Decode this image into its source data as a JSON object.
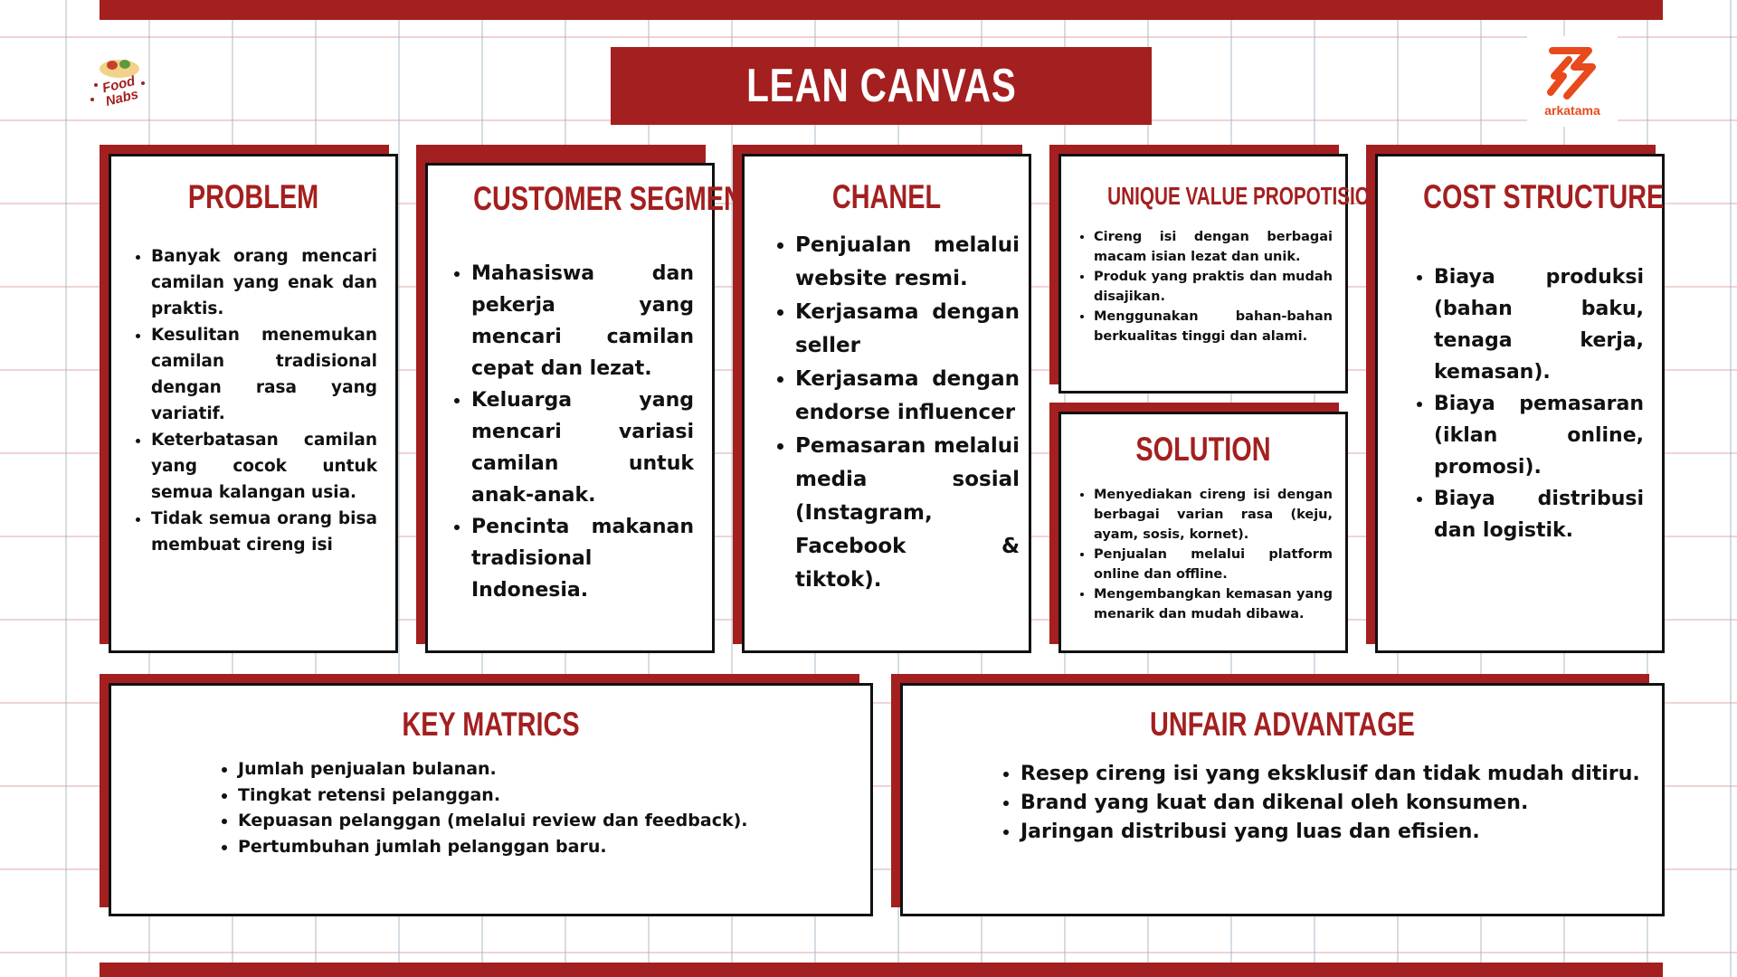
{
  "title": "LEAN CANVAS",
  "logos": {
    "left_text": "Food Nabs",
    "right_text": "arkatama"
  },
  "colors": {
    "accent": "#a41f1f",
    "border": "#111111",
    "logo_orange": "#e84a1c"
  },
  "problem": {
    "title": "PROBLEM",
    "items": [
      "Banyak orang mencari camilan yang enak dan praktis.",
      "Kesulitan menemukan camilan tradisional dengan rasa yang variatif.",
      "Keterbatasan camilan yang cocok untuk semua kalangan usia.",
      "Tidak semua orang bisa membuat cireng isi"
    ]
  },
  "customer_segment": {
    "title": "CUSTOMER SEGMENT",
    "items": [
      "Mahasiswa dan pekerja yang mencari camilan cepat dan lezat.",
      "Keluarga yang mencari variasi camilan untuk anak-anak.",
      "Pencinta makanan tradisional Indonesia."
    ]
  },
  "chanel": {
    "title": "CHANEL",
    "items": [
      "Penjualan melalui website resmi.",
      "Kerjasama dengan seller",
      "Kerjasama dengan endorse influencer",
      "Pemasaran melalui media sosial (Instagram, Facebook & tiktok)."
    ]
  },
  "unique_value": {
    "title": "UNIQUE VALUE PROPOTISION",
    "items": [
      "Cireng isi dengan berbagai macam isian lezat dan unik.",
      "Produk yang praktis dan mudah disajikan.",
      "Menggunakan bahan-bahan berkualitas tinggi dan alami."
    ]
  },
  "solution": {
    "title": "SOLUTION",
    "items": [
      "Menyediakan cireng isi dengan berbagai varian rasa (keju, ayam, sosis, kornet).",
      "Penjualan melalui platform online dan offline.",
      "Mengembangkan kemasan yang menarik dan mudah dibawa."
    ]
  },
  "cost_structure": {
    "title": "COST STRUCTURE",
    "items": [
      "Biaya produksi (bahan baku, tenaga kerja, kemasan).",
      "Biaya pemasaran (iklan online, promosi).",
      "Biaya distribusi dan logistik."
    ]
  },
  "key_matrics": {
    "title": "KEY MATRICS",
    "items": [
      "Jumlah penjualan bulanan.",
      "Tingkat retensi pelanggan.",
      "Kepuasan pelanggan (melalui review dan feedback).",
      "Pertumbuhan jumlah pelanggan baru."
    ]
  },
  "unfair_advantage": {
    "title": "UNFAIR ADVANTAGE",
    "items": [
      "Resep cireng isi yang eksklusif dan tidak mudah ditiru.",
      "Brand yang kuat dan dikenal oleh konsumen.",
      "Jaringan distribusi yang luas dan efisien."
    ]
  }
}
